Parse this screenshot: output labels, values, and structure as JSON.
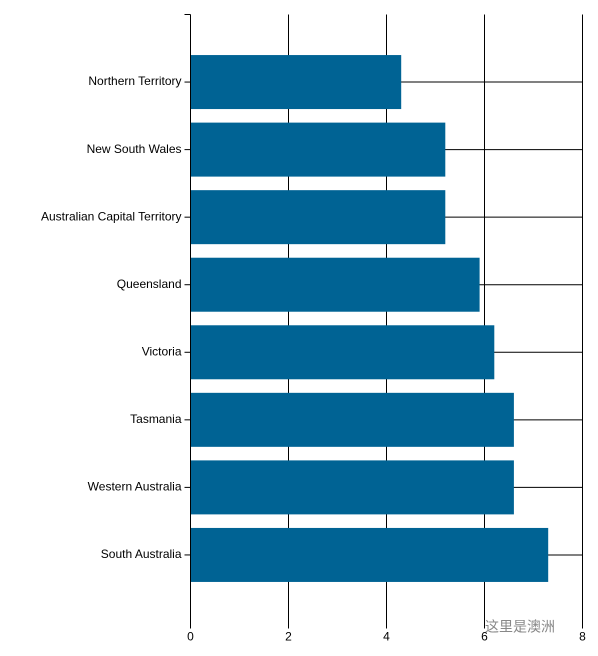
{
  "chart_data": {
    "type": "bar",
    "orientation": "horizontal",
    "categories": [
      "Northern Territory",
      "New South Wales",
      "Australian Capital Territory",
      "Queensland",
      "Victoria",
      "Tasmania",
      "Western Australia",
      "South Australia"
    ],
    "values": [
      4.3,
      5.2,
      5.2,
      5.9,
      6.2,
      6.6,
      6.6,
      7.3
    ],
    "color": "#006394",
    "xlim": [
      0,
      8
    ],
    "xticks": [
      0,
      2,
      4,
      6,
      8
    ],
    "grid": true,
    "watermark": "这里是澳洲"
  }
}
